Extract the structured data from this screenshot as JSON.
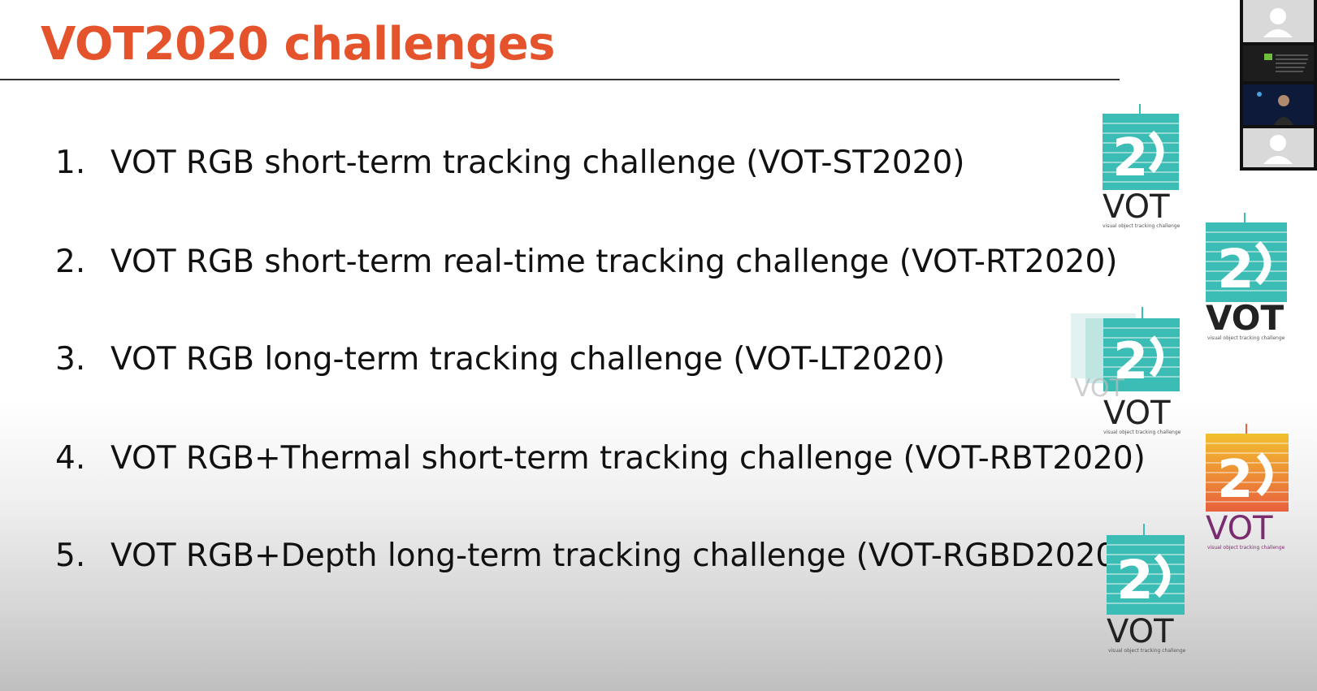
{
  "slide": {
    "title": "VOT2020 challenges",
    "items": [
      {
        "number": "1.",
        "text": "VOT RGB short-term tracking challenge (VOT-ST2020)"
      },
      {
        "number": "2.",
        "text": "VOT RGB short-term real-time tracking challenge (VOT-RT2020)"
      },
      {
        "number": "3.",
        "text": "VOT RGB long-term tracking challenge (VOT-LT2020)"
      },
      {
        "number": "4.",
        "text": "VOT RGB+Thermal short-term tracking challenge (VOT-RBT2020)"
      },
      {
        "number": "5.",
        "text": "VOT RGB+Depth long-term tracking challenge (VOT-RGBD2020)"
      }
    ]
  },
  "logos": {
    "wordmark": "VOT",
    "tagline": "visual object tracking challenge",
    "teal": "#3bbcb4",
    "warm_top": "#f2c12e",
    "warm_bottom": "#e8603c"
  },
  "colors": {
    "title": "#e4532b",
    "text": "#111111"
  }
}
